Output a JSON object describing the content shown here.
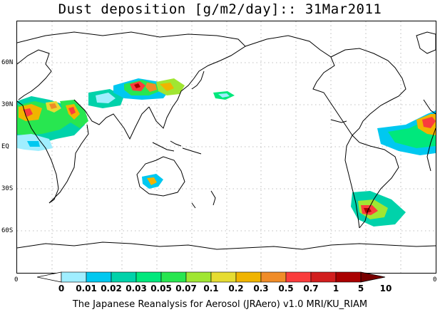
{
  "title": "Dust deposition [g/m2/day]:: 31Mar2011",
  "lat_labels": [
    "60N",
    "30N",
    "EQ",
    "30S",
    "60S"
  ],
  "lon_edge_labels": [
    "0",
    "0"
  ],
  "colorbar": {
    "labels": [
      "0",
      "0.01",
      "0.02",
      "0.03",
      "0.05",
      "0.07",
      "0.1",
      "0.2",
      "0.3",
      "0.5",
      "0.7",
      "1",
      "5",
      "10"
    ],
    "colors": [
      "#ffffff",
      "#a0eeff",
      "#00c8f0",
      "#00d2aa",
      "#00e87c",
      "#28e650",
      "#a0e632",
      "#e6dc32",
      "#f0b400",
      "#f08c28",
      "#fa3c3c",
      "#d21e1e",
      "#aa0000",
      "#780000"
    ]
  },
  "footer": "The Japanese Reanalysis for Aerosol (JRAero) v1.0 MRI/KU_RIAM"
}
